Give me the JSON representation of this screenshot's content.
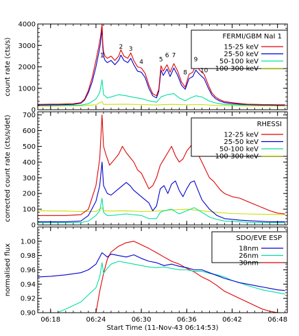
{
  "chart_data": [
    {
      "type": "line",
      "legend_title": "FERMI/GBM NaI 1",
      "ylabel": "count rate (cts/s)",
      "ylim": [
        0,
        4000
      ],
      "yticks": [
        0,
        1000,
        2000,
        3000,
        4000
      ],
      "legend_placement": "top-right",
      "annotations": [
        {
          "label": "1",
          "x": 24.8,
          "y": 2450
        },
        {
          "label": "2",
          "x": 27.3,
          "y": 2850
        },
        {
          "label": "3",
          "x": 28.6,
          "y": 2750
        },
        {
          "label": "4",
          "x": 30.0,
          "y": 2150
        },
        {
          "label": "5",
          "x": 32.6,
          "y": 2250
        },
        {
          "label": "6",
          "x": 33.4,
          "y": 2450
        },
        {
          "label": "7",
          "x": 34.3,
          "y": 2450
        },
        {
          "label": "8",
          "x": 35.8,
          "y": 1650
        },
        {
          "label": "9",
          "x": 37.2,
          "y": 2250
        },
        {
          "label": "10",
          "x": 38.3,
          "y": 1750
        }
      ],
      "series": [
        {
          "name": "15-25 keV",
          "color": "#e00000",
          "x": [
            16.3,
            17,
            18,
            19,
            20,
            21,
            22,
            22.5,
            23,
            23.5,
            24,
            24.4,
            24.6,
            24.8,
            24.9,
            25.0,
            25.2,
            25.5,
            26,
            26.5,
            27,
            27.3,
            27.7,
            28.2,
            28.6,
            29,
            29.5,
            30,
            30.5,
            31,
            31.5,
            32,
            32.3,
            32.6,
            32.9,
            33.4,
            33.8,
            34.3,
            34.8,
            35.3,
            35.8,
            36.3,
            36.8,
            37.2,
            37.7,
            38.3,
            38.8,
            39.3,
            39.8,
            40.3,
            41,
            42,
            43,
            44,
            45,
            46,
            47,
            48,
            49
          ],
          "y": [
            250,
            250,
            260,
            260,
            270,
            280,
            330,
            500,
            900,
            1500,
            2300,
            3000,
            3400,
            4000,
            3100,
            2700,
            2500,
            2400,
            2500,
            2300,
            2500,
            2800,
            2500,
            2400,
            2650,
            2300,
            2000,
            1950,
            1700,
            1150,
            750,
            650,
            950,
            2050,
            1800,
            2100,
            1750,
            2150,
            1800,
            1300,
            1050,
            1650,
            1750,
            2100,
            1850,
            1650,
            1200,
            800,
            600,
            480,
            380,
            330,
            290,
            260,
            250,
            240,
            240,
            230,
            230
          ]
        },
        {
          "name": "25-50 keV",
          "color": "#0000d0",
          "x": [
            16.3,
            17,
            18,
            19,
            20,
            21,
            22,
            22.5,
            23,
            23.5,
            24,
            24.4,
            24.6,
            24.8,
            24.9,
            25.0,
            25.2,
            25.5,
            26,
            26.5,
            27,
            27.3,
            27.7,
            28.2,
            28.6,
            29,
            29.5,
            30,
            30.5,
            31,
            31.5,
            32,
            32.3,
            32.6,
            32.9,
            33.4,
            33.8,
            34.3,
            34.8,
            35.3,
            35.8,
            36.3,
            36.8,
            37.2,
            37.7,
            38.3,
            38.8,
            39.3,
            39.8,
            40.3,
            41,
            42,
            43,
            44,
            45,
            46,
            47,
            48,
            49
          ],
          "y": [
            220,
            220,
            230,
            230,
            240,
            250,
            300,
            450,
            800,
            1300,
            2000,
            2700,
            3100,
            3800,
            2900,
            2500,
            2300,
            2200,
            2300,
            2100,
            2300,
            2550,
            2300,
            2200,
            2400,
            2100,
            1800,
            1750,
            1500,
            1000,
            650,
            550,
            850,
            1850,
            1600,
            1900,
            1550,
            1950,
            1600,
            1150,
            950,
            1450,
            1550,
            1850,
            1650,
            1450,
            1050,
            700,
            520,
            420,
            330,
            290,
            260,
            240,
            230,
            220,
            220,
            210,
            210
          ]
        },
        {
          "name": "50-100 keV",
          "color": "#00e0a0",
          "x": [
            16.3,
            18,
            20,
            22,
            23,
            24,
            24.5,
            24.8,
            25.0,
            25.5,
            26,
            27,
            28,
            29,
            30,
            31,
            32,
            32.6,
            33.4,
            34.3,
            35,
            35.8,
            36.5,
            37.2,
            38,
            38.5,
            39,
            40,
            41,
            43,
            45,
            47,
            49
          ],
          "y": [
            200,
            200,
            205,
            215,
            280,
            500,
            800,
            1400,
            700,
            550,
            600,
            700,
            650,
            580,
            520,
            420,
            350,
            600,
            700,
            750,
            550,
            420,
            550,
            650,
            600,
            500,
            400,
            300,
            250,
            220,
            210,
            205,
            200
          ]
        },
        {
          "name": "100-300 keV",
          "color": "#c8e000",
          "x": [
            16.3,
            18,
            20,
            22,
            24,
            24.8,
            25,
            26,
            28,
            30,
            32,
            34,
            36,
            38,
            40,
            42,
            44,
            46,
            49
          ],
          "y": [
            170,
            170,
            175,
            180,
            230,
            380,
            250,
            250,
            260,
            240,
            220,
            250,
            230,
            240,
            200,
            185,
            180,
            175,
            170
          ]
        }
      ]
    },
    {
      "type": "line",
      "legend_title": "RHESSI",
      "ylabel": "corrected count rate (cts/s/det)",
      "ylim": [
        0,
        720
      ],
      "yticks": [
        0,
        100,
        200,
        300,
        400,
        500,
        600,
        700
      ],
      "legend_placement": "top-right",
      "series": [
        {
          "name": "12-25 keV",
          "color": "#e00000",
          "x": [
            16.3,
            20,
            22,
            23,
            24,
            24.5,
            24.8,
            25,
            25.3,
            25.8,
            26.5,
            27,
            27.5,
            28,
            28.5,
            29,
            29.5,
            30,
            30.5,
            31,
            31.5,
            32,
            32.5,
            33,
            33.5,
            34,
            34.5,
            35,
            35.5,
            36,
            36.5,
            37,
            37.5,
            38,
            38.5,
            39,
            39.5,
            40,
            40.5,
            41,
            42,
            43,
            44,
            45,
            46,
            47,
            48,
            49
          ],
          "y": [
            60,
            60,
            65,
            100,
            250,
            420,
            700,
            500,
            450,
            380,
            420,
            450,
            500,
            460,
            430,
            400,
            350,
            330,
            280,
            230,
            250,
            300,
            380,
            420,
            460,
            500,
            440,
            400,
            420,
            470,
            500,
            530,
            450,
            400,
            350,
            300,
            280,
            250,
            220,
            200,
            180,
            170,
            150,
            130,
            110,
            90,
            75,
            70
          ]
        },
        {
          "name": "25-50 keV",
          "color": "#0000d0",
          "x": [
            16.3,
            20,
            22,
            23,
            24,
            24.5,
            24.8,
            25,
            25.5,
            26,
            27,
            28,
            28.5,
            29,
            30,
            31,
            31.5,
            32,
            32.5,
            33,
            33.5,
            34,
            34.5,
            35,
            35.5,
            36,
            36.5,
            37,
            37.5,
            38,
            39,
            40,
            41,
            43,
            45,
            47,
            49
          ],
          "y": [
            20,
            20,
            25,
            60,
            150,
            250,
            400,
            250,
            200,
            190,
            230,
            270,
            250,
            220,
            180,
            140,
            90,
            120,
            230,
            250,
            200,
            260,
            280,
            220,
            180,
            230,
            270,
            280,
            220,
            160,
            100,
            60,
            40,
            30,
            25,
            20,
            20
          ]
        },
        {
          "name": "50-100 keV",
          "color": "#00e0a0",
          "x": [
            16.3,
            20,
            22,
            23,
            24,
            24.5,
            24.8,
            25,
            25.5,
            26,
            28,
            30,
            31,
            32,
            32.5,
            33,
            34,
            35,
            36,
            37,
            38,
            39,
            40,
            41,
            43,
            45,
            49
          ],
          "y": [
            15,
            15,
            15,
            25,
            60,
            90,
            170,
            80,
            60,
            60,
            70,
            60,
            40,
            40,
            80,
            90,
            100,
            70,
            90,
            110,
            80,
            50,
            35,
            25,
            20,
            15,
            15
          ]
        },
        {
          "name": "100-300 keV",
          "color": "#c8e000",
          "x": [
            16.3,
            20,
            22,
            24,
            24.8,
            25,
            26,
            28,
            30,
            32,
            34,
            36,
            38,
            40,
            42,
            44,
            46,
            49
          ],
          "y": [
            90,
            88,
            85,
            85,
            110,
            90,
            88,
            90,
            85,
            88,
            95,
            100,
            90,
            80,
            72,
            70,
            68,
            65
          ]
        }
      ]
    },
    {
      "type": "line",
      "legend_title": "SDO/EVE ESP",
      "ylabel": "normalised flux",
      "xlabel": "Start Time (11-Nov-43 06:14:53)",
      "ylim": [
        0.9,
        1.02
      ],
      "yticks": [
        "0.90",
        "0.92",
        "0.94",
        "0.96",
        "0.98",
        "1.00"
      ],
      "xticks": [
        "06:18",
        "06:24",
        "06:30",
        "06:36",
        "06:42",
        "06:48"
      ],
      "xtick_minutes": [
        18,
        24,
        30,
        36,
        42,
        48
      ],
      "xlim_minutes": [
        16.3,
        49.3
      ],
      "legend_placement": "top-right",
      "series": [
        {
          "name": "18nm",
          "color": "#0000d0",
          "x": [
            16.3,
            18,
            20,
            22,
            23,
            24,
            24.8,
            25.5,
            26,
            27,
            28,
            29,
            30,
            31,
            32,
            33,
            34,
            35,
            36,
            37,
            38,
            39,
            40,
            41,
            42,
            43,
            44,
            45,
            46,
            47,
            48,
            49
          ],
          "y": [
            0.95,
            0.951,
            0.953,
            0.956,
            0.96,
            0.968,
            0.984,
            0.978,
            0.982,
            0.98,
            0.978,
            0.981,
            0.976,
            0.972,
            0.97,
            0.966,
            0.968,
            0.965,
            0.963,
            0.96,
            0.96,
            0.956,
            0.952,
            0.948,
            0.945,
            0.942,
            0.94,
            0.938,
            0.936,
            0.934,
            0.932,
            0.931
          ]
        },
        {
          "name": "26nm",
          "color": "#00e0a0",
          "x": [
            16.3,
            18,
            20,
            22,
            23,
            24,
            24.5,
            24.8,
            25,
            25.5,
            26,
            27,
            28,
            29,
            30,
            31,
            32,
            33,
            34,
            35,
            36,
            37,
            38,
            39,
            40,
            41,
            42,
            43,
            44,
            45,
            46,
            47,
            48,
            49
          ],
          "y": [
            0.89,
            0.896,
            0.905,
            0.915,
            0.925,
            0.935,
            0.95,
            0.97,
            0.955,
            0.962,
            0.968,
            0.972,
            0.97,
            0.968,
            0.966,
            0.964,
            0.963,
            0.964,
            0.962,
            0.96,
            0.96,
            0.958,
            0.958,
            0.955,
            0.953,
            0.95,
            0.945,
            0.942,
            0.938,
            0.935,
            0.932,
            0.93,
            0.928,
            0.926
          ]
        },
        {
          "name": "30nm",
          "color": "#e00000",
          "x": [
            16.3,
            23,
            24,
            24.5,
            25,
            25.5,
            26,
            27,
            28,
            29,
            30,
            31,
            32,
            33,
            34,
            35,
            36,
            37,
            38,
            39,
            40,
            41,
            42,
            43,
            44,
            45,
            46,
            47,
            48,
            49
          ],
          "y": [
            0.89,
            0.89,
            0.9,
            0.93,
            0.955,
            0.975,
            0.985,
            0.993,
            0.998,
            1.0,
            0.995,
            0.99,
            0.984,
            0.978,
            0.972,
            0.968,
            0.962,
            0.957,
            0.95,
            0.945,
            0.938,
            0.93,
            0.925,
            0.92,
            0.915,
            0.91,
            0.905,
            0.902,
            0.9,
            0.898
          ]
        }
      ]
    }
  ]
}
